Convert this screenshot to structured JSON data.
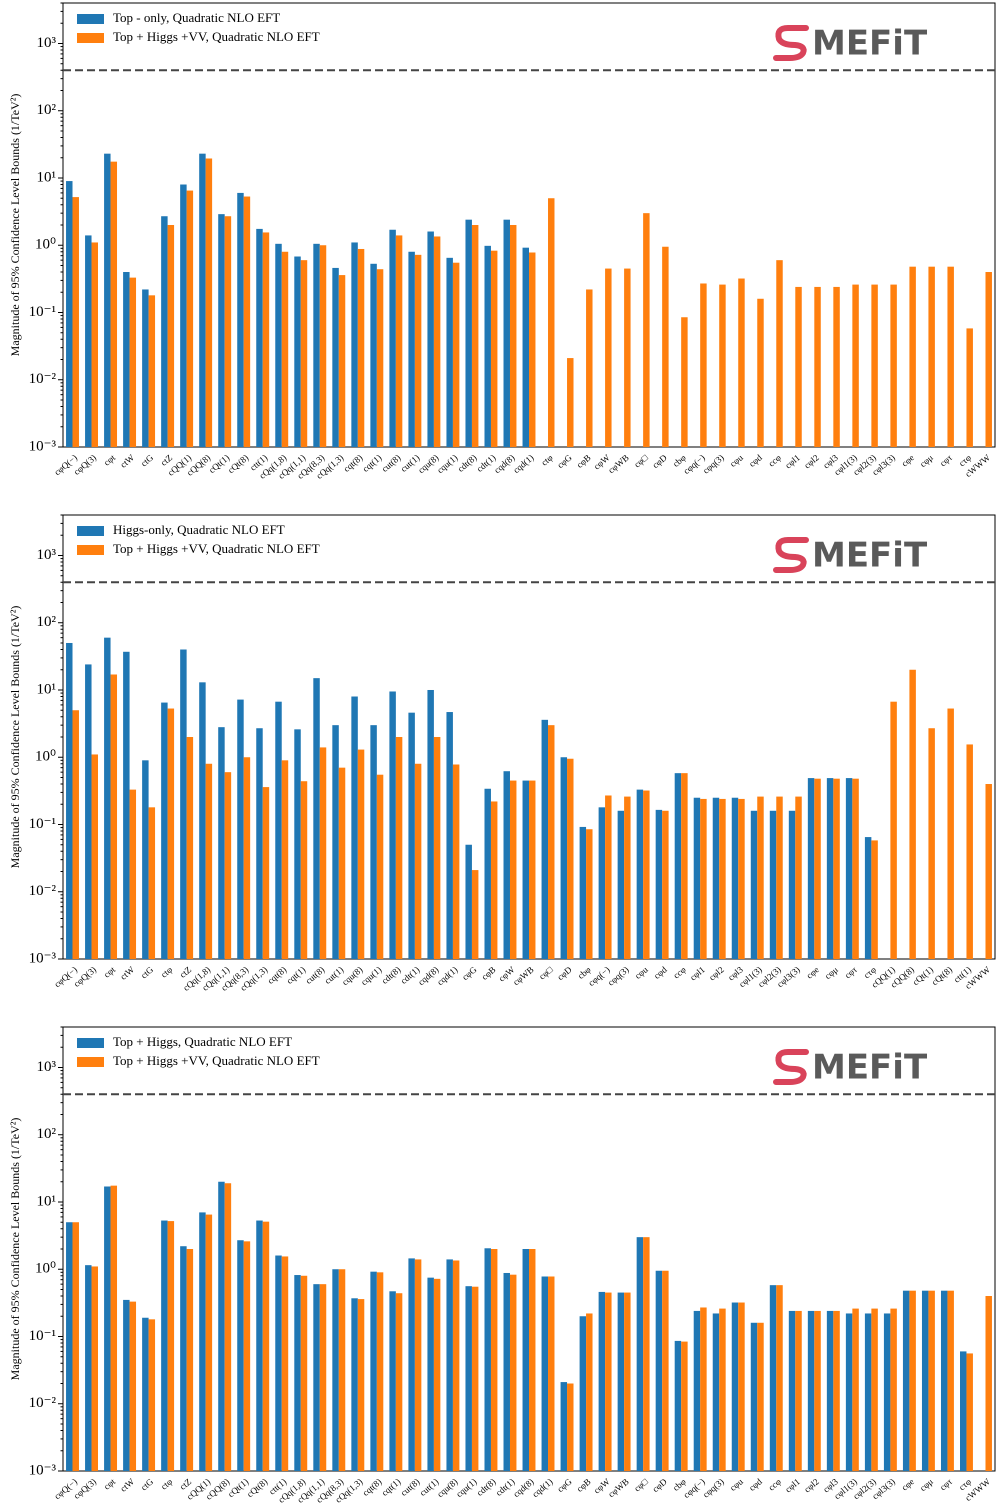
{
  "chart_data": [
    {
      "type": "bar",
      "log_scale": true,
      "legend": "upper left",
      "logo": "MEFiT",
      "ylabel": "Magnitude of 95% Confidence Level Bounds (1/TeV²)",
      "reference_line": 400,
      "ylim": [
        0.001,
        4000
      ],
      "yticks": [
        {
          "value": 0.001,
          "label": "10⁻³"
        },
        {
          "value": 0.01,
          "label": "10⁻²"
        },
        {
          "value": 0.1,
          "label": "10⁻¹"
        },
        {
          "value": 1,
          "label": "10⁰"
        },
        {
          "value": 10,
          "label": "10¹"
        },
        {
          "value": 100,
          "label": "10²"
        },
        {
          "value": 1000,
          "label": "10³"
        }
      ],
      "categories": [
        "cφQ(−)",
        "cφQ(3)",
        "cφt",
        "ctW",
        "ctG",
        "ctZ",
        "cQQ(1)",
        "cQQ(8)",
        "cQt(1)",
        "cQt(8)",
        "ctt(1)",
        "cQq(1,8)",
        "cQq(1,1)",
        "cQq(8,3)",
        "cQq(1,3)",
        "cqt(8)",
        "cqt(1)",
        "cut(8)",
        "cut(1)",
        "cqu(8)",
        "cqu(1)",
        "cdt(8)",
        "cdt(1)",
        "cqd(8)",
        "cqd(1)",
        "ctφ",
        "cφG",
        "cφB",
        "cφW",
        "cφWB",
        "cφ□",
        "cφD",
        "cbφ",
        "cφq(−)",
        "cφq(3)",
        "cφu",
        "cφd",
        "ccφ",
        "cφl1",
        "cφl2",
        "cφl3",
        "cφl1(3)",
        "cφl2(3)",
        "cφl3(3)",
        "cφe",
        "cφμ",
        "cφτ",
        "cτφ",
        "cWWW"
      ],
      "series": [
        {
          "name": "Top - only, Quadratic NLO EFT",
          "color": "#1f77b4",
          "values": [
            9,
            1.4,
            23,
            0.4,
            0.22,
            2.7,
            8,
            23,
            2.9,
            6,
            1.75,
            1.05,
            0.68,
            1.05,
            0.46,
            1.1,
            0.53,
            1.7,
            0.8,
            1.6,
            0.65,
            2.4,
            0.98,
            2.4,
            0.92,
            null,
            null,
            null,
            null,
            null,
            null,
            null,
            null,
            null,
            null,
            null,
            null,
            null,
            null,
            null,
            null,
            null,
            null,
            null,
            null,
            null,
            null,
            null,
            null
          ]
        },
        {
          "name": "Top + Higgs +VV, Quadratic NLO EFT",
          "color": "#ff7f0e",
          "values": [
            5.2,
            1.1,
            17.5,
            0.33,
            0.18,
            2.0,
            6.5,
            19.5,
            2.7,
            5.3,
            1.55,
            0.8,
            0.6,
            1.0,
            0.36,
            0.88,
            0.44,
            1.4,
            0.72,
            1.35,
            0.55,
            2.0,
            0.83,
            2.0,
            0.78,
            5,
            0.021,
            0.22,
            0.45,
            0.45,
            3,
            0.95,
            0.085,
            0.27,
            0.26,
            0.32,
            0.16,
            0.6,
            0.24,
            0.24,
            0.24,
            0.26,
            0.26,
            0.26,
            0.48,
            0.48,
            0.48,
            0.058,
            0.4
          ]
        }
      ]
    },
    {
      "type": "bar",
      "log_scale": true,
      "legend": "upper left",
      "logo": "MEFiT",
      "ylabel": "Magnitude of 95% Confidence Level Bounds (1/TeV²)",
      "reference_line": 400,
      "ylim": [
        0.001,
        4000
      ],
      "yticks": [
        {
          "value": 0.001,
          "label": "10⁻³"
        },
        {
          "value": 0.01,
          "label": "10⁻²"
        },
        {
          "value": 0.1,
          "label": "10⁻¹"
        },
        {
          "value": 1,
          "label": "10⁰"
        },
        {
          "value": 10,
          "label": "10¹"
        },
        {
          "value": 100,
          "label": "10²"
        },
        {
          "value": 1000,
          "label": "10³"
        }
      ],
      "categories": [
        "cφQ(−)",
        "cφQ(3)",
        "cφt",
        "ctW",
        "ctG",
        "ctφ",
        "ctZ",
        "cQq(1,8)",
        "cQq(1,1)",
        "cQq(8,3)",
        "cQq(1,3)",
        "cqt(8)",
        "cqt(1)",
        "cut(8)",
        "cut(1)",
        "cqu(8)",
        "cqu(1)",
        "cdt(8)",
        "cdt(1)",
        "cqd(8)",
        "cqd(1)",
        "cφG",
        "cφB",
        "cφW",
        "cφWB",
        "cφ□",
        "cφD",
        "cbφ",
        "cφq(−)",
        "cφq(3)",
        "cφu",
        "cφd",
        "ccφ",
        "cφl1",
        "cφl2",
        "cφl3",
        "cφl1(3)",
        "cφl2(3)",
        "cφl3(3)",
        "cφe",
        "cφμ",
        "cφτ",
        "cτφ",
        "cQQ(1)",
        "cQQ(8)",
        "cQt(1)",
        "cQt(8)",
        "ctt(1)",
        "cWWW"
      ],
      "series": [
        {
          "name": "Higgs-only, Quadratic NLO EFT",
          "color": "#1f77b4",
          "values": [
            50,
            24,
            60,
            37,
            0.9,
            6.5,
            40,
            13,
            2.8,
            7.2,
            2.7,
            6.7,
            2.6,
            15,
            3.0,
            8,
            3.0,
            9.5,
            4.6,
            10,
            4.7,
            0.05,
            0.34,
            0.62,
            0.45,
            3.6,
            1.0,
            0.092,
            0.18,
            0.16,
            0.33,
            0.165,
            0.58,
            0.25,
            0.25,
            0.25,
            0.16,
            0.16,
            0.16,
            0.49,
            0.49,
            0.49,
            0.065,
            null,
            null,
            null,
            null,
            null,
            null
          ]
        },
        {
          "name": "Top + Higgs +VV, Quadratic NLO EFT",
          "color": "#ff7f0e",
          "values": [
            5,
            1.1,
            17,
            0.33,
            0.18,
            5.3,
            2,
            0.8,
            0.6,
            1.0,
            0.36,
            0.9,
            0.44,
            1.4,
            0.7,
            1.3,
            0.55,
            2.0,
            0.8,
            2.0,
            0.78,
            0.021,
            0.22,
            0.45,
            0.45,
            3.0,
            0.95,
            0.085,
            0.27,
            0.26,
            0.32,
            0.16,
            0.58,
            0.24,
            0.24,
            0.24,
            0.26,
            0.26,
            0.26,
            0.48,
            0.48,
            0.48,
            0.058,
            6.7,
            20,
            2.7,
            5.3,
            1.55,
            0.4
          ]
        }
      ]
    },
    {
      "type": "bar",
      "log_scale": true,
      "legend": "upper left",
      "logo": "MEFiT",
      "ylabel": "Magnitude of 95% Confidence Level Bounds (1/TeV²)",
      "reference_line": 400,
      "ylim": [
        0.001,
        4000
      ],
      "yticks": [
        {
          "value": 0.001,
          "label": "10⁻³"
        },
        {
          "value": 0.01,
          "label": "10⁻²"
        },
        {
          "value": 0.1,
          "label": "10⁻¹"
        },
        {
          "value": 1,
          "label": "10⁰"
        },
        {
          "value": 10,
          "label": "10¹"
        },
        {
          "value": 100,
          "label": "10²"
        },
        {
          "value": 1000,
          "label": "10³"
        }
      ],
      "categories": [
        "cφQ(−)",
        "cφQ(3)",
        "cφt",
        "ctW",
        "ctG",
        "ctφ",
        "ctZ",
        "cQQ(1)",
        "cQQ(8)",
        "cQt(1)",
        "cQt(8)",
        "ctt(1)",
        "cQq(1,8)",
        "cQq(1,1)",
        "cQq(8,3)",
        "cQq(1,3)",
        "cqt(8)",
        "cqt(1)",
        "cut(8)",
        "cut(1)",
        "cqu(8)",
        "cqu(1)",
        "cdt(8)",
        "cdt(1)",
        "cqd(8)",
        "cqd(1)",
        "cφG",
        "cφB",
        "cφW",
        "cφWB",
        "cφ□",
        "cφD",
        "cbφ",
        "cφq(−)",
        "cφq(3)",
        "cφu",
        "cφd",
        "ccφ",
        "cφl1",
        "cφl2",
        "cφl3",
        "cφl1(3)",
        "cφl2(3)",
        "cφl3(3)",
        "cφe",
        "cφμ",
        "cφτ",
        "cτφ",
        "cWWW"
      ],
      "series": [
        {
          "name": "Top + Higgs, Quadratic NLO EFT",
          "color": "#1f77b4",
          "values": [
            5,
            1.15,
            17,
            0.35,
            0.19,
            5.3,
            2.2,
            7,
            20,
            2.7,
            5.3,
            1.6,
            0.82,
            0.6,
            1.0,
            0.37,
            0.92,
            0.47,
            1.45,
            0.75,
            1.4,
            0.56,
            2.05,
            0.88,
            2.0,
            0.78,
            0.021,
            0.2,
            0.46,
            0.45,
            3.0,
            0.95,
            0.086,
            0.24,
            0.22,
            0.32,
            0.16,
            0.58,
            0.24,
            0.24,
            0.24,
            0.22,
            0.22,
            0.22,
            0.48,
            0.48,
            0.48,
            0.06,
            null
          ]
        },
        {
          "name": "Top + Higgs +VV, Quadratic NLO EFT",
          "color": "#ff7f0e",
          "values": [
            5,
            1.1,
            17.5,
            0.33,
            0.18,
            5.2,
            2.0,
            6.5,
            19,
            2.6,
            5.1,
            1.55,
            0.8,
            0.6,
            1.0,
            0.36,
            0.9,
            0.44,
            1.4,
            0.72,
            1.35,
            0.55,
            2.0,
            0.83,
            2.0,
            0.78,
            0.02,
            0.22,
            0.45,
            0.45,
            3.0,
            0.95,
            0.084,
            0.27,
            0.26,
            0.32,
            0.16,
            0.58,
            0.24,
            0.24,
            0.24,
            0.26,
            0.26,
            0.26,
            0.48,
            0.48,
            0.48,
            0.056,
            0.4
          ]
        }
      ]
    }
  ]
}
